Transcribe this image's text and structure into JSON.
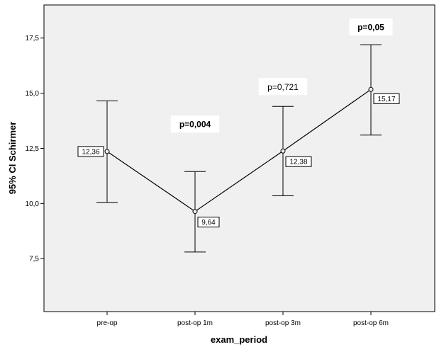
{
  "chart_data": {
    "type": "line",
    "xlabel": "exam_period",
    "ylabel": "95% CI Schirmer",
    "categories": [
      "pre-op",
      "post-op 1m",
      "post-op 3m",
      "post-op 6m"
    ],
    "means": [
      12.36,
      9.64,
      12.38,
      15.17
    ],
    "ci_lower": [
      10.05,
      7.8,
      10.35,
      13.1
    ],
    "ci_upper": [
      14.65,
      11.45,
      14.4,
      17.2
    ],
    "mean_labels": [
      "12,36",
      "9,64",
      "12,38",
      "15,17"
    ],
    "ylim": [
      5.1,
      19.0
    ],
    "yticks": [
      7.5,
      10.0,
      12.5,
      15.0,
      17.5
    ],
    "ytick_labels": [
      "7,5",
      "10,0",
      "12,5",
      "15,0",
      "17,5"
    ],
    "grid": false,
    "annotations": [
      {
        "text": "p=0,004",
        "category_index": 1,
        "y": 13.6,
        "bold": true
      },
      {
        "text": "p=0,721",
        "category_index": 2,
        "y": 15.3,
        "bold": false
      },
      {
        "text": "p=0,05",
        "category_index": 3,
        "y": 18.0,
        "bold": true
      }
    ],
    "colors": {
      "plot_background": "#f0f0f0",
      "line": "#000000",
      "label_box": "#ffffff"
    }
  }
}
